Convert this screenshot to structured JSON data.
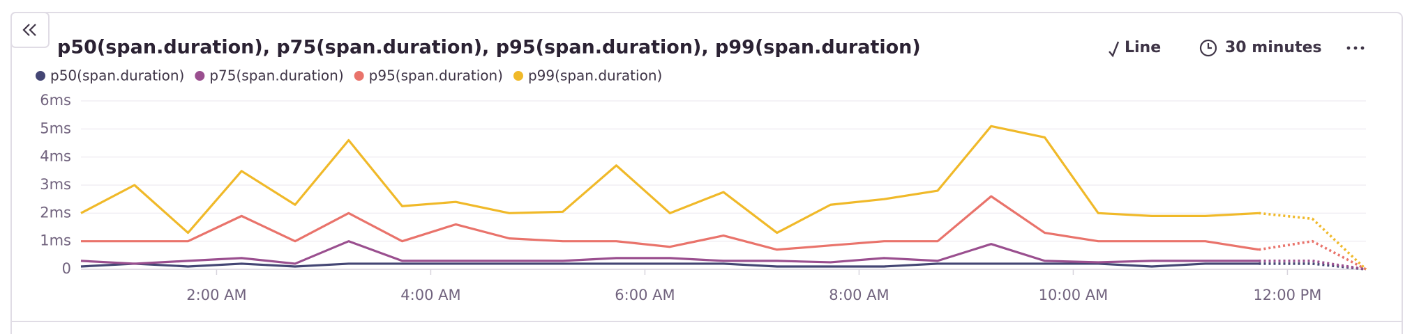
{
  "widget": {
    "chart_type_label": "Line",
    "interval": "30 minutes"
  },
  "chart_data": {
    "type": "line",
    "title": "p50(span.duration), p75(span.duration), p95(span.duration), p99(span.duration)",
    "x": [
      44,
      74,
      104,
      134,
      164,
      194,
      224,
      254,
      284,
      314,
      344,
      374,
      404,
      434,
      464,
      494,
      524,
      554,
      584,
      614,
      644,
      674,
      704,
      734,
      764
    ],
    "xlim": [
      44,
      764
    ],
    "xticks": [
      {
        "value": 120,
        "label": "2:00 AM"
      },
      {
        "value": 240,
        "label": "4:00 AM"
      },
      {
        "value": 360,
        "label": "6:00 AM"
      },
      {
        "value": 480,
        "label": "8:00 AM"
      },
      {
        "value": 600,
        "label": "10:00 AM"
      },
      {
        "value": 720,
        "label": "12:00 PM"
      }
    ],
    "ylim": [
      0,
      6
    ],
    "yticks": [
      0,
      {
        "value": 1,
        "label": "1ms"
      },
      {
        "value": 2,
        "label": "2ms"
      },
      {
        "value": 3,
        "label": "3ms"
      },
      {
        "value": 4,
        "label": "4ms"
      },
      {
        "value": 5,
        "label": "5ms"
      },
      {
        "value": 6,
        "label": "6ms"
      }
    ],
    "grid": true,
    "partial_from_index": 22,
    "series": [
      {
        "name": "p50(span.duration)",
        "color": "#444674",
        "values": [
          0.1,
          0.2,
          0.1,
          0.2,
          0.1,
          0.2,
          0.2,
          0.2,
          0.2,
          0.2,
          0.2,
          0.2,
          0.2,
          0.1,
          0.1,
          0.1,
          0.2,
          0.2,
          0.2,
          0.2,
          0.1,
          0.2,
          0.2,
          0.2,
          0
        ]
      },
      {
        "name": "p75(span.duration)",
        "color": "#9a4f8f",
        "values": [
          0.3,
          0.2,
          0.3,
          0.4,
          0.2,
          1.0,
          0.3,
          0.3,
          0.3,
          0.3,
          0.4,
          0.4,
          0.3,
          0.3,
          0.25,
          0.4,
          0.3,
          0.9,
          0.3,
          0.25,
          0.3,
          0.3,
          0.3,
          0.3,
          0
        ]
      },
      {
        "name": "p95(span.duration)",
        "color": "#e9736b",
        "values": [
          1.0,
          1.0,
          1.0,
          1.9,
          1.0,
          2.0,
          1.0,
          1.6,
          1.1,
          1.0,
          1.0,
          0.8,
          1.2,
          0.7,
          0.85,
          1.0,
          1.0,
          2.6,
          1.3,
          1.0,
          1.0,
          1.0,
          0.7,
          1.0,
          0
        ]
      },
      {
        "name": "p99(span.duration)",
        "color": "#f0b929",
        "values": [
          2.0,
          3.0,
          1.3,
          3.5,
          2.3,
          4.6,
          2.25,
          2.4,
          2.0,
          2.05,
          3.7,
          2.0,
          2.75,
          1.3,
          2.3,
          2.5,
          2.8,
          5.1,
          4.7,
          2.0,
          1.9,
          1.9,
          2.0,
          1.8,
          0
        ]
      }
    ]
  }
}
